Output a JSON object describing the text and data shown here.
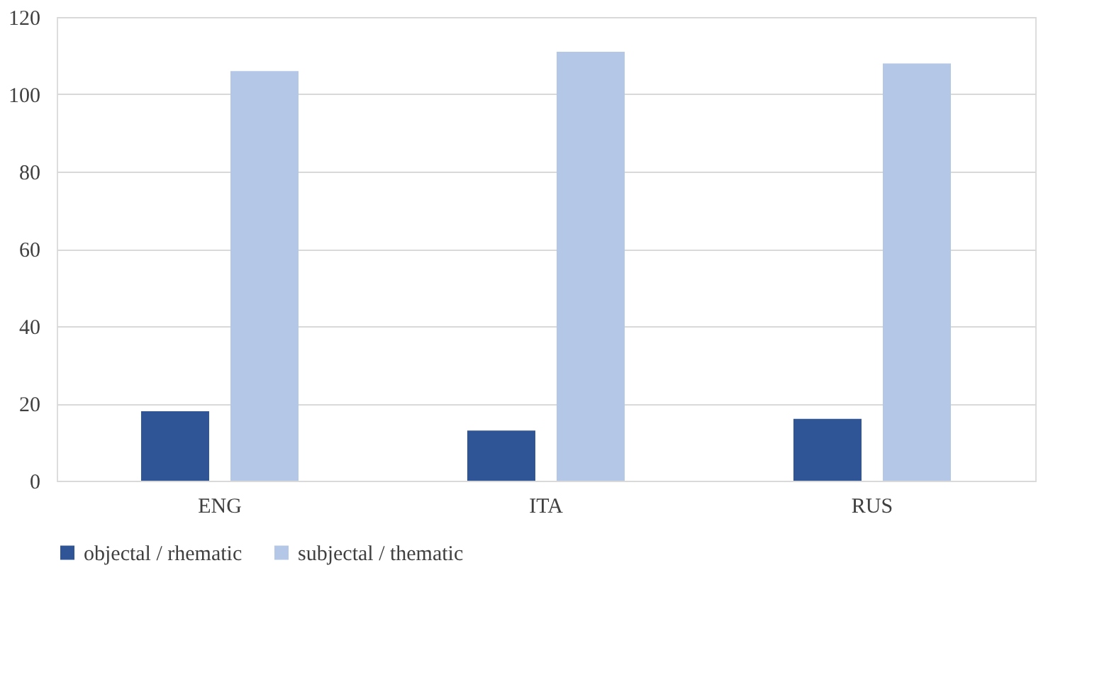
{
  "chart_data": {
    "type": "bar",
    "categories": [
      "ENG",
      "ITA",
      "RUS"
    ],
    "series": [
      {
        "name": "objectal / rhematic",
        "color": "#2f5597",
        "values": [
          18,
          13,
          16
        ]
      },
      {
        "name": "subjectal / thematic",
        "color": "#b4c7e7",
        "values": [
          106,
          111,
          108
        ]
      }
    ],
    "ylim": [
      0,
      120
    ],
    "yticks": [
      0,
      20,
      40,
      60,
      80,
      100,
      120
    ],
    "grid": "y",
    "legend": "bottom"
  }
}
